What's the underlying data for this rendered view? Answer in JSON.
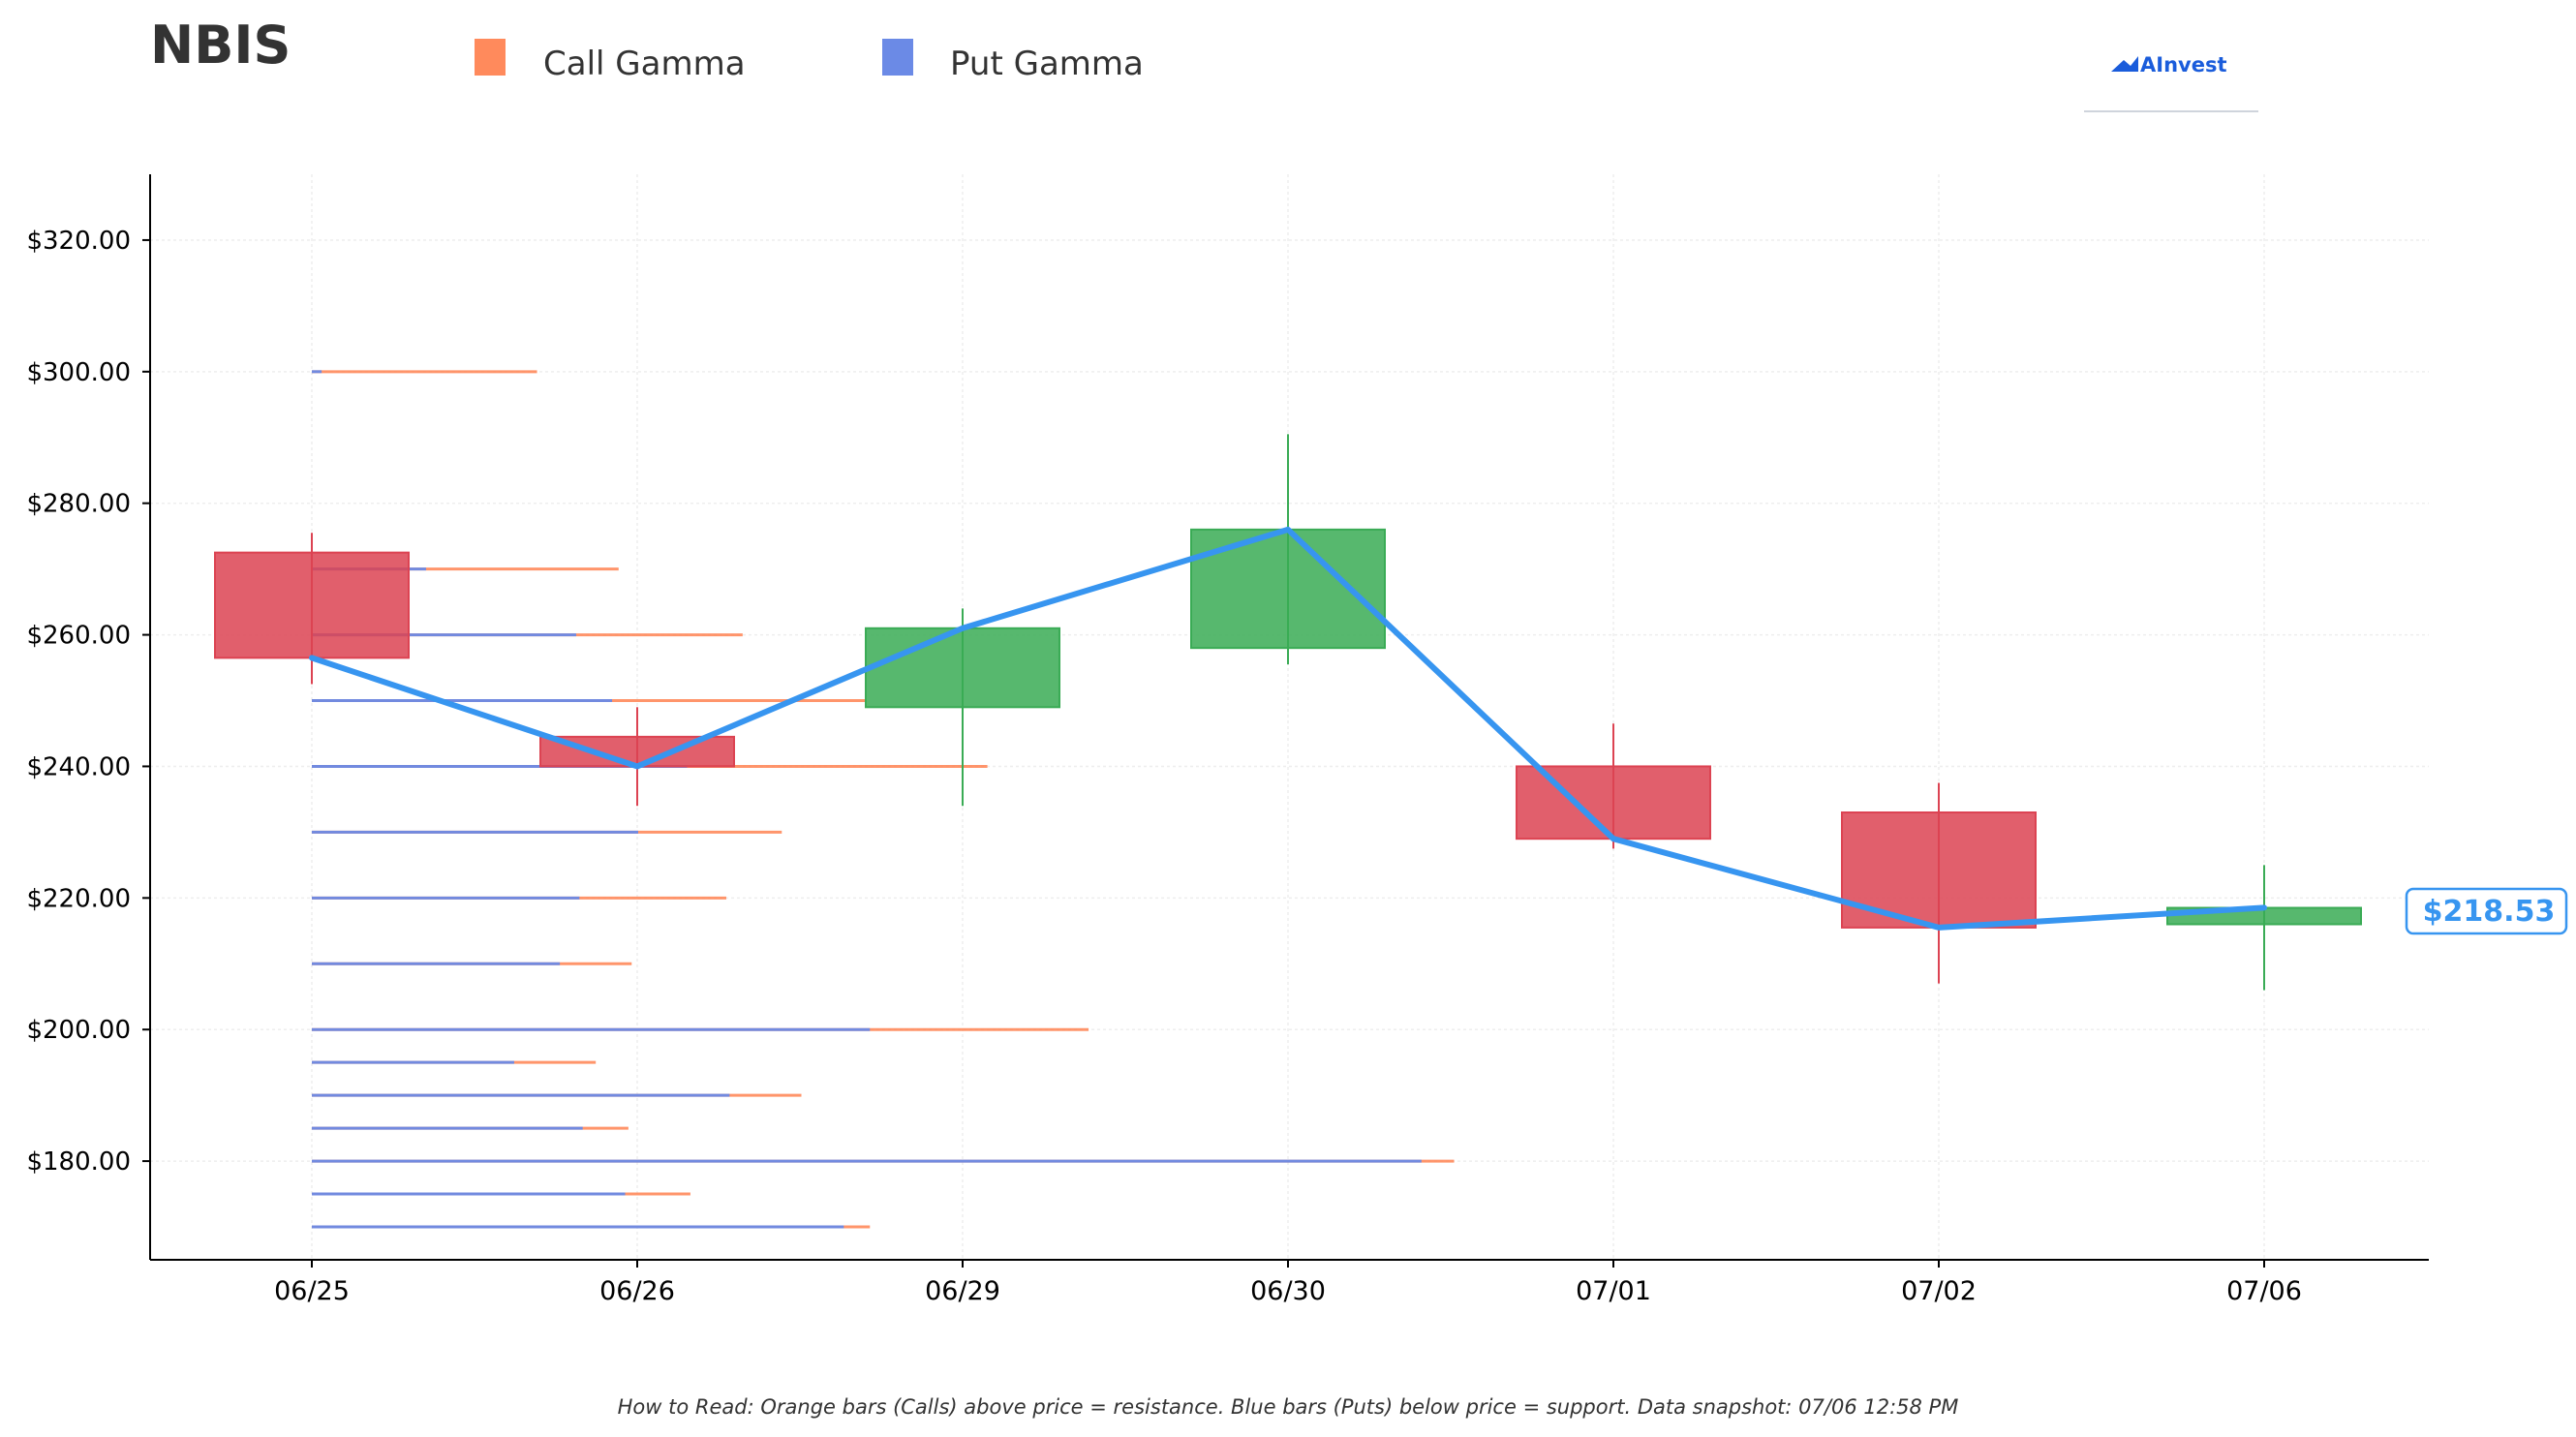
{
  "ticker": "NBIS",
  "logo_text": "AInvest",
  "legend": [
    {
      "label": "Call Gamma",
      "color": "#ff8a5c"
    },
    {
      "label": "Put Gamma",
      "color": "#6b8ae6"
    }
  ],
  "footer": "How to Read: Orange bars (Calls) above price = resistance. Blue bars (Puts) below price = support. Data snapshot: 07/06 12:58 PM",
  "current_price_label": "$218.53",
  "colors": {
    "up": "#3aab55",
    "down": "#dc4352",
    "price_line": "#3795f0",
    "call": "#ff8a5c",
    "put": "#6b8ae6",
    "brand": "#1a5cdb"
  },
  "chart_data": {
    "type": "candlestick",
    "categories": [
      "06/25",
      "06/26",
      "06/29",
      "06/30",
      "07/01",
      "07/02",
      "07/06"
    ],
    "ohlc": [
      {
        "date": "06/25",
        "open": 272.5,
        "high": 275.5,
        "low": 252.5,
        "close": 256.5
      },
      {
        "date": "06/26",
        "open": 244.5,
        "high": 249.0,
        "low": 234.0,
        "close": 240.0
      },
      {
        "date": "06/29",
        "open": 249.0,
        "high": 264.0,
        "low": 234.0,
        "close": 261.0
      },
      {
        "date": "06/30",
        "open": 258.0,
        "high": 290.5,
        "low": 255.5,
        "close": 276.0
      },
      {
        "date": "07/01",
        "open": 240.0,
        "high": 246.5,
        "low": 227.5,
        "close": 229.0
      },
      {
        "date": "07/02",
        "open": 233.0,
        "high": 237.5,
        "low": 207.0,
        "close": 215.5
      },
      {
        "date": "07/06",
        "open": 216.0,
        "high": 225.0,
        "low": 206.0,
        "close": 218.5
      }
    ],
    "price_line": [
      256.5,
      240.0,
      261.0,
      276.0,
      229.0,
      215.5,
      218.53
    ],
    "gamma_levels": [
      {
        "strike": 300,
        "put": 0.03,
        "call": 0.69
      },
      {
        "strike": 270,
        "put": 0.35,
        "call": 0.94
      },
      {
        "strike": 260,
        "put": 0.81,
        "call": 1.32
      },
      {
        "strike": 250,
        "put": 0.92,
        "call": 1.7
      },
      {
        "strike": 240,
        "put": 1.15,
        "call": 2.07
      },
      {
        "strike": 230,
        "put": 1.0,
        "call": 1.44
      },
      {
        "strike": 220,
        "put": 0.82,
        "call": 1.27
      },
      {
        "strike": 210,
        "put": 0.76,
        "call": 0.98
      },
      {
        "strike": 200,
        "put": 1.71,
        "call": 2.38
      },
      {
        "strike": 195,
        "put": 0.62,
        "call": 0.87
      },
      {
        "strike": 190,
        "put": 1.28,
        "call": 1.5
      },
      {
        "strike": 185,
        "put": 0.83,
        "call": 0.97
      },
      {
        "strike": 180,
        "put": 3.4,
        "call": 3.5
      },
      {
        "strike": 175,
        "put": 0.96,
        "call": 1.16
      },
      {
        "strike": 170,
        "put": 1.63,
        "call": 1.71
      }
    ],
    "ylim": [
      165,
      330
    ],
    "yticks": [
      180,
      200,
      220,
      240,
      260,
      280,
      300,
      320
    ],
    "ytick_labels": [
      "$180.00",
      "$200.00",
      "$220.00",
      "$240.00",
      "$260.00",
      "$280.00",
      "$300.00",
      "$320.00"
    ],
    "xlabel": "",
    "ylabel": "",
    "grid": true
  }
}
